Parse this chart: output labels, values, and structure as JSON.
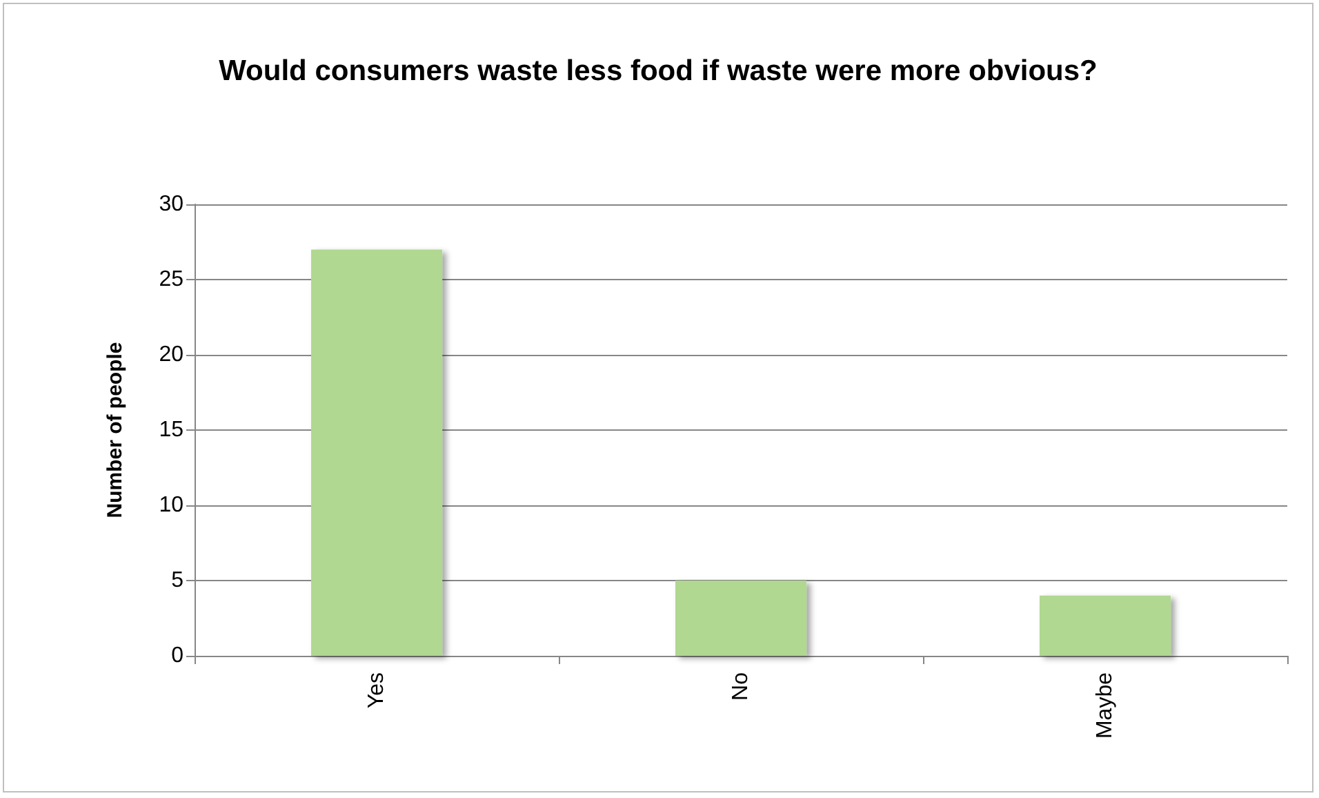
{
  "chart_data": {
    "type": "bar",
    "title": "Would consumers waste less food if waste were more obvious?",
    "ylabel": "Number of people",
    "categories": [
      "Yes",
      "No",
      "Maybe"
    ],
    "values": [
      27,
      5,
      4
    ],
    "color": "#b0d890",
    "ylim": [
      0,
      30
    ],
    "yticks": [
      0,
      5,
      10,
      15,
      20,
      25,
      30
    ],
    "grid": "y"
  }
}
